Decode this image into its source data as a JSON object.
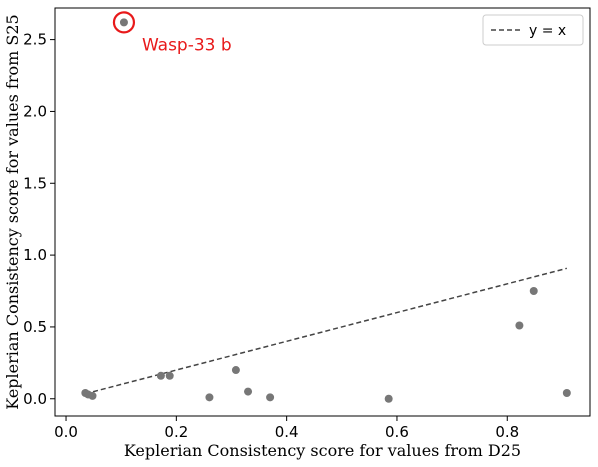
{
  "chart_data": {
    "type": "scatter",
    "xlabel": "Keplerian Consistency score for values from D25",
    "ylabel": "Keplerian Consistency score for values from S25",
    "xlim": [
      -0.02,
      0.95
    ],
    "ylim": [
      -0.12,
      2.72
    ],
    "x_ticks": [
      "0.0",
      "0.2",
      "0.4",
      "0.6",
      "0.8"
    ],
    "y_ticks": [
      "0.0",
      "0.5",
      "1.0",
      "1.5",
      "2.0",
      "2.5"
    ],
    "grid": false,
    "point_color": "#777777",
    "points": [
      {
        "x": 0.105,
        "y": 2.62
      },
      {
        "x": 0.035,
        "y": 0.04
      },
      {
        "x": 0.04,
        "y": 0.03
      },
      {
        "x": 0.048,
        "y": 0.02
      },
      {
        "x": 0.172,
        "y": 0.16
      },
      {
        "x": 0.188,
        "y": 0.16
      },
      {
        "x": 0.26,
        "y": 0.01
      },
      {
        "x": 0.308,
        "y": 0.2
      },
      {
        "x": 0.33,
        "y": 0.05
      },
      {
        "x": 0.37,
        "y": 0.01
      },
      {
        "x": 0.585,
        "y": 0.0
      },
      {
        "x": 0.822,
        "y": 0.51
      },
      {
        "x": 0.848,
        "y": 0.75
      },
      {
        "x": 0.908,
        "y": 0.04
      }
    ],
    "reference_line": {
      "label": "y = x",
      "style": "dashed",
      "color": "#444444",
      "x": [
        0.035,
        0.908
      ],
      "y": [
        0.035,
        0.908
      ]
    },
    "legend": {
      "position": "top-right",
      "entries": [
        "y = x"
      ]
    },
    "annotation": {
      "text": "Wasp-33 b",
      "color": "#e8191a",
      "target": {
        "x": 0.105,
        "y": 2.62
      }
    }
  }
}
